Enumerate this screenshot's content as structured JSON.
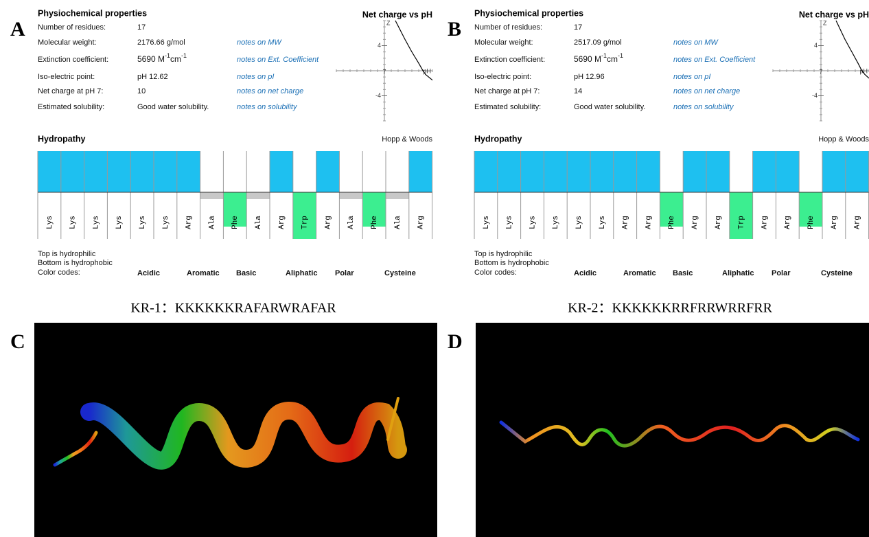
{
  "panels": [
    {
      "label": "A",
      "properties_title": "Physiochemical properties",
      "properties": [
        {
          "name": "Number of residues:",
          "value": "17"
        },
        {
          "name": "Molecular weight:",
          "value": "2176.66 g/mol",
          "note": "notes on MW"
        },
        {
          "name": "Extinction coefficient:",
          "value_parts": [
            "5690 M",
            "-1",
            "cm",
            "-1"
          ],
          "note": "notes on Ext. Coefficient"
        },
        {
          "name": "Iso-electric point:",
          "value": "pH 12.62",
          "note": "notes on pI"
        },
        {
          "name": "Net charge at pH 7:",
          "value": "10",
          "note": "notes on net charge"
        },
        {
          "name": "Estimated solubility:",
          "value": "Good water solubility.",
          "note": "notes on solubility"
        }
      ],
      "net_charge": {
        "title": "Net charge vs pH",
        "y_label": "Z",
        "x_label": "pH",
        "xlim": [
          0,
          14
        ],
        "ylim": [
          -8,
          8
        ],
        "xticks": [
          7
        ],
        "yticks": [
          4,
          -4
        ],
        "x": [
          8.6,
          10,
          11,
          12,
          12.62,
          13,
          14
        ],
        "y": [
          8,
          5,
          3,
          1.2,
          0,
          -0.6,
          -1.5
        ]
      },
      "hydropathy": {
        "title": "Hydropathy",
        "scale": "Hopp & Woods",
        "ylim": [
          -3.4,
          3
        ],
        "residues": [
          "Lys",
          "Lys",
          "Lys",
          "Lys",
          "Lys",
          "Lys",
          "Arg",
          "Ala",
          "Phe",
          "Ala",
          "Arg",
          "Trp",
          "Arg",
          "Ala",
          "Phe",
          "Ala",
          "Arg"
        ],
        "values": [
          3,
          3,
          3,
          3,
          3,
          3,
          3,
          -0.5,
          -2.5,
          -0.5,
          3,
          -3.4,
          3,
          -0.5,
          -2.5,
          -0.5,
          3
        ],
        "bar_colors": [
          "#1ec0f0",
          "#1ec0f0",
          "#1ec0f0",
          "#1ec0f0",
          "#1ec0f0",
          "#1ec0f0",
          "#1ec0f0",
          "#c8c8c8",
          "#3cee90",
          "#c8c8c8",
          "#1ec0f0",
          "#3cee90",
          "#1ec0f0",
          "#c8c8c8",
          "#3cee90",
          "#c8c8c8",
          "#1ec0f0"
        ]
      },
      "notes": [
        "Top is hydrophilic",
        "Bottom is hydrophobic",
        "Color codes:"
      ],
      "color_codes": [
        {
          "name": "Acidic",
          "color": "#ffb0c0"
        },
        {
          "name": "Aromatic",
          "color": "#44ee99"
        },
        {
          "name": "Basic",
          "color": "#00bfff"
        },
        {
          "name": "Aliphatic",
          "color": "#bbbbbb"
        },
        {
          "name": "Polar",
          "color": "#006400"
        },
        {
          "name": "Cysteine",
          "color": "#eeee00"
        }
      ],
      "caption": "KR-1：KKKKKKRAFARWRAFAR"
    },
    {
      "label": "B",
      "properties_title": "Physiochemical properties",
      "properties": [
        {
          "name": "Number of residues:",
          "value": "17"
        },
        {
          "name": "Molecular weight:",
          "value": "2517.09 g/mol",
          "note": "notes on MW"
        },
        {
          "name": "Extinction coefficient:",
          "value_parts": [
            "5690 M",
            "-1",
            "cm",
            "-1"
          ],
          "note": "notes on Ext. Coefficient"
        },
        {
          "name": "Iso-electric point:",
          "value": "pH 12.96",
          "note": "notes on pI"
        },
        {
          "name": "Net charge at pH 7:",
          "value": "14",
          "note": "notes on net charge"
        },
        {
          "name": "Estimated solubility:",
          "value": "Good water solubility.",
          "note": "notes on solubility"
        }
      ],
      "net_charge": {
        "title": "Net charge vs pH",
        "y_label": "Z",
        "x_label": "pH",
        "xlim": [
          0,
          14
        ],
        "ylim": [
          -8,
          8
        ],
        "xticks": [
          7
        ],
        "yticks": [
          4,
          -4
        ],
        "x": [
          9.2,
          10.5,
          11.5,
          12.4,
          12.96,
          13.4,
          14
        ],
        "y": [
          8,
          5,
          3,
          1.2,
          0,
          -0.6,
          -1.2
        ]
      },
      "hydropathy": {
        "title": "Hydropathy",
        "scale": "Hopp & Woods",
        "ylim": [
          -3.4,
          3
        ],
        "residues": [
          "Lys",
          "Lys",
          "Lys",
          "Lys",
          "Lys",
          "Lys",
          "Arg",
          "Arg",
          "Phe",
          "Arg",
          "Arg",
          "Trp",
          "Arg",
          "Arg",
          "Phe",
          "Arg",
          "Arg"
        ],
        "values": [
          3,
          3,
          3,
          3,
          3,
          3,
          3,
          3,
          -2.5,
          3,
          3,
          -3.4,
          3,
          3,
          -2.5,
          3,
          3
        ],
        "bar_colors": [
          "#1ec0f0",
          "#1ec0f0",
          "#1ec0f0",
          "#1ec0f0",
          "#1ec0f0",
          "#1ec0f0",
          "#1ec0f0",
          "#1ec0f0",
          "#3cee90",
          "#1ec0f0",
          "#1ec0f0",
          "#3cee90",
          "#1ec0f0",
          "#1ec0f0",
          "#3cee90",
          "#1ec0f0",
          "#1ec0f0"
        ]
      },
      "notes": [
        "Top is hydrophilic",
        "Bottom is hydrophobic",
        "Color codes:"
      ],
      "color_codes": [
        {
          "name": "Acidic",
          "color": "#ffb0c0"
        },
        {
          "name": "Aromatic",
          "color": "#44ee99"
        },
        {
          "name": "Basic",
          "color": "#00bfff"
        },
        {
          "name": "Aliphatic",
          "color": "#bbbbbb"
        },
        {
          "name": "Polar",
          "color": "#006400"
        },
        {
          "name": "Cysteine",
          "color": "#eeee00"
        }
      ],
      "caption": "KR-2：KKKKKKRRFRRWRRFRR"
    },
    {
      "label": "C"
    },
    {
      "label": "D"
    }
  ]
}
